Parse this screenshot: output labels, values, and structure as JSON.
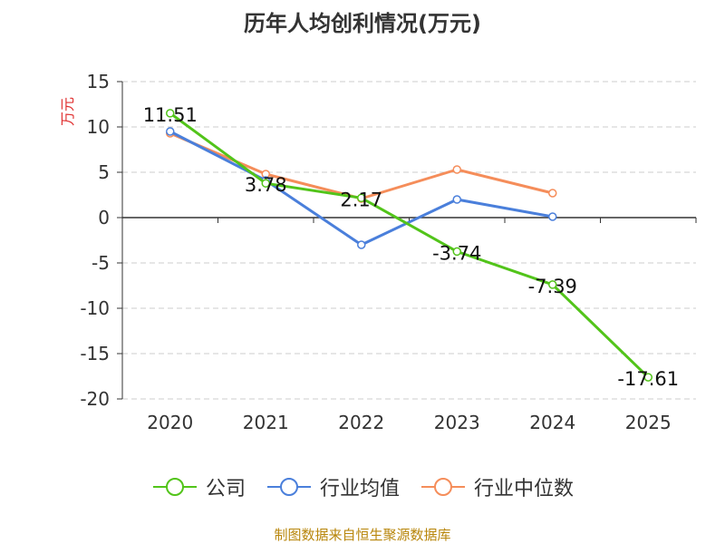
{
  "chart_data": {
    "type": "line",
    "title": "历年人均创利情况(万元)",
    "ylabel": "万元",
    "xlabel": "",
    "categories": [
      "2020",
      "2021",
      "2022",
      "2023",
      "2024",
      "2025"
    ],
    "ylim": [
      -20,
      15
    ],
    "yticks": [
      15,
      10,
      5,
      0,
      -5,
      -10,
      -15,
      -20
    ],
    "grid": true,
    "legend_position": "bottom",
    "series": [
      {
        "name": "公司",
        "color": "#52c41a",
        "values": [
          11.51,
          3.78,
          2.17,
          -3.74,
          -7.39,
          -17.61
        ],
        "labels": [
          "11.51",
          "3.78",
          "2.17",
          "-3.74",
          "-7.39",
          "-17.61"
        ]
      },
      {
        "name": "行业均值",
        "color": "#4a7fdb",
        "values": [
          9.5,
          4.1,
          -3.0,
          2.0,
          0.1,
          null
        ]
      },
      {
        "name": "行业中位数",
        "color": "#f58d5a",
        "values": [
          9.3,
          4.8,
          2.1,
          5.3,
          2.7,
          null
        ]
      }
    ]
  },
  "source_text": "制图数据来自恒生聚源数据库"
}
